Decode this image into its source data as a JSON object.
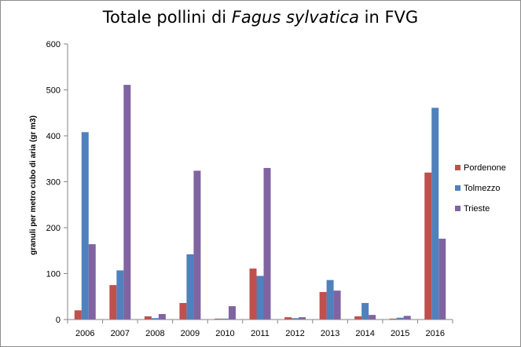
{
  "chart_data": {
    "type": "bar",
    "title_parts": {
      "before": "Totale pollini di ",
      "italic": "Fagus sylvatica",
      "after": " in FVG"
    },
    "xlabel": "",
    "ylabel": "granuli per metro cubo di aria (gr m3)",
    "ylim": [
      0,
      600
    ],
    "yticks": [
      "0",
      "100",
      "200",
      "300",
      "400",
      "500",
      "600"
    ],
    "categories": [
      "2006",
      "2007",
      "2008",
      "2009",
      "2010",
      "2011",
      "2012",
      "2013",
      "2014",
      "2015",
      "2016"
    ],
    "series": [
      {
        "name": "Pordenone",
        "color": "#c0504d",
        "values": [
          20,
          75,
          7,
          36,
          2,
          111,
          5,
          60,
          7,
          2,
          320
        ]
      },
      {
        "name": "Tolmezzo",
        "color": "#4f81bd",
        "values": [
          408,
          107,
          3,
          142,
          2,
          95,
          3,
          86,
          36,
          4,
          461
        ]
      },
      {
        "name": "Trieste",
        "color": "#8064a2",
        "values": [
          164,
          511,
          12,
          324,
          29,
          330,
          5,
          63,
          10,
          8,
          176
        ]
      }
    ],
    "grid": false,
    "legend_position": "right"
  }
}
